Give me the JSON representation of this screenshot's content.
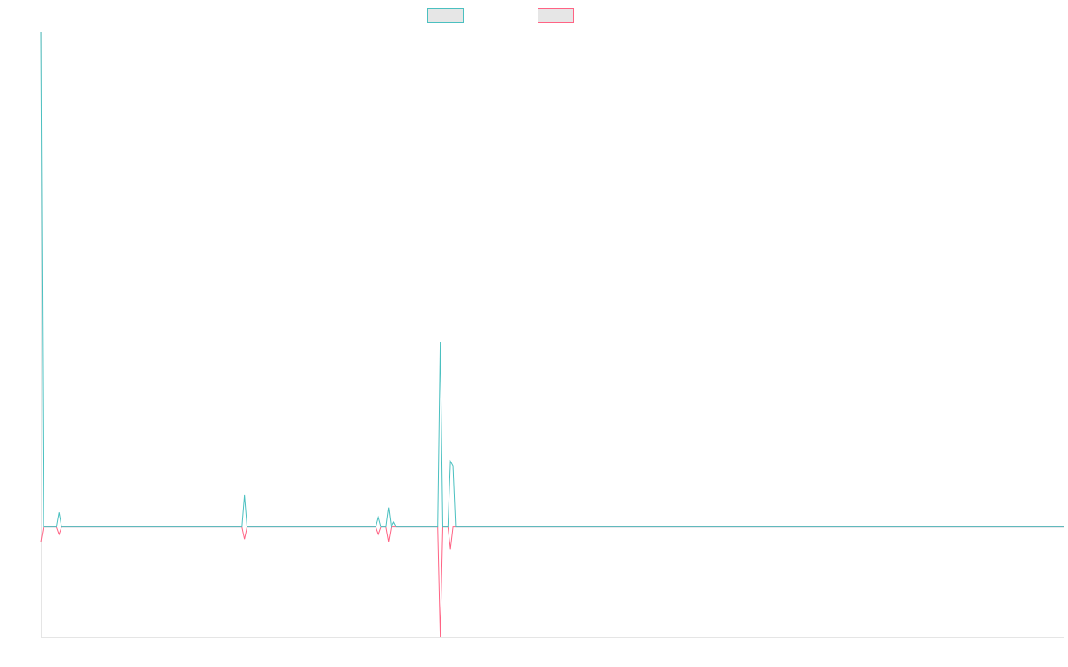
{
  "chart_data": {
    "type": "line",
    "title": "",
    "xlabel": "",
    "ylabel": "",
    "grid": false,
    "legend_position": "top-center",
    "x_range": [
      0,
      397
    ],
    "ylim": [
      -45,
      203
    ],
    "baseline": 0,
    "series": [
      {
        "color": "#4bc0c0",
        "legend_fill": "#e6e6e6",
        "points": [
          [
            0,
            203
          ],
          [
            1,
            0
          ],
          [
            6,
            0
          ],
          [
            7,
            6
          ],
          [
            8,
            0
          ],
          [
            78,
            0
          ],
          [
            79,
            13
          ],
          [
            80,
            0
          ],
          [
            130,
            0
          ],
          [
            131,
            4
          ],
          [
            132,
            0
          ],
          [
            134,
            0
          ],
          [
            135,
            8
          ],
          [
            136,
            0
          ],
          [
            137,
            2
          ],
          [
            138,
            0
          ],
          [
            154,
            0
          ],
          [
            155,
            76
          ],
          [
            156,
            0
          ],
          [
            158,
            0
          ],
          [
            159,
            27
          ],
          [
            160,
            25
          ],
          [
            161,
            0
          ],
          [
            397,
            0
          ]
        ]
      },
      {
        "color": "#ff6384",
        "legend_fill": "#e6e6e6",
        "points": [
          [
            0,
            -6
          ],
          [
            1,
            0
          ],
          [
            6,
            0
          ],
          [
            7,
            -3
          ],
          [
            8,
            0
          ],
          [
            78,
            0
          ],
          [
            79,
            -5
          ],
          [
            80,
            0
          ],
          [
            130,
            0
          ],
          [
            131,
            -3
          ],
          [
            132,
            0
          ],
          [
            134,
            0
          ],
          [
            135,
            -6
          ],
          [
            136,
            0
          ],
          [
            154,
            0
          ],
          [
            155,
            -45
          ],
          [
            156,
            0
          ],
          [
            158,
            0
          ],
          [
            159,
            -9
          ],
          [
            160,
            0
          ],
          [
            397,
            0
          ]
        ]
      }
    ]
  }
}
